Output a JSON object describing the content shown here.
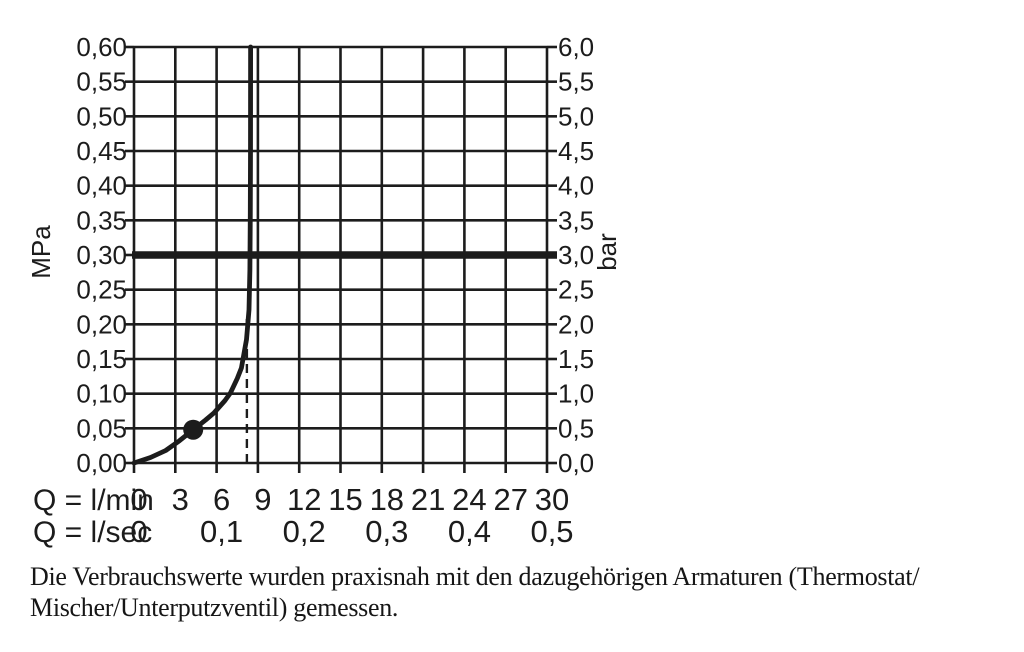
{
  "page": {
    "background": "#ffffff"
  },
  "chart_data": {
    "type": "line",
    "title": "",
    "grid": true,
    "ink_color": "#1c1c1c",
    "x_axis_primary": {
      "label": "Q = l/min",
      "ticks": [
        "0",
        "3",
        "6",
        "9",
        "12",
        "15",
        "18",
        "21",
        "24",
        "27",
        "30"
      ],
      "values": [
        0,
        3,
        6,
        9,
        12,
        15,
        18,
        21,
        24,
        27,
        30
      ],
      "range": [
        0,
        30
      ]
    },
    "x_axis_secondary": {
      "label": "Q = l/sec",
      "ticks": [
        "0",
        "0,1",
        "0,2",
        "0,3",
        "0,4",
        "0,5"
      ],
      "values_lmin": [
        0,
        6,
        12,
        18,
        24,
        30
      ]
    },
    "y_axis_left": {
      "label": "MPa",
      "ticks": [
        "0,60",
        "0,55",
        "0,50",
        "0,45",
        "0,40",
        "0,35",
        "0,30",
        "0,25",
        "0,20",
        "0,15",
        "0,10",
        "0,05",
        "0,00"
      ],
      "values": [
        0.6,
        0.55,
        0.5,
        0.45,
        0.4,
        0.35,
        0.3,
        0.25,
        0.2,
        0.15,
        0.1,
        0.05,
        0.0
      ],
      "range": [
        0,
        0.6
      ]
    },
    "y_axis_right": {
      "label": "bar",
      "ticks": [
        "6,0",
        "5,5",
        "5,0",
        "4,5",
        "4,0",
        "3,5",
        "3,0",
        "2,5",
        "2,0",
        "1,5",
        "1,0",
        "0,5",
        "0,0"
      ],
      "values_bar": [
        6.0,
        5.5,
        5.0,
        4.5,
        4.0,
        3.5,
        3.0,
        2.5,
        2.0,
        1.5,
        1.0,
        0.5,
        0.0
      ],
      "range": [
        0,
        6
      ]
    },
    "series": [
      {
        "name": "flow-pressure-curve",
        "points_lmin_mpa": [
          [
            0,
            0
          ],
          [
            1.2,
            0.008
          ],
          [
            2.3,
            0.018
          ],
          [
            3.3,
            0.032
          ],
          [
            4.3,
            0.048
          ],
          [
            5.2,
            0.062
          ],
          [
            5.8,
            0.072
          ],
          [
            6.6,
            0.09
          ],
          [
            7.0,
            0.101
          ],
          [
            7.5,
            0.122
          ],
          [
            7.8,
            0.137
          ],
          [
            8.17,
            0.178
          ],
          [
            8.35,
            0.221
          ],
          [
            8.42,
            0.279
          ],
          [
            8.45,
            0.36
          ],
          [
            8.46,
            0.45
          ],
          [
            8.47,
            0.6
          ]
        ]
      }
    ],
    "marker_point_lmin_mpa": [
      4.3,
      0.048
    ],
    "reference_line_mpa": 0.3,
    "reference_line_bar": 3.0,
    "dashed_line": {
      "x_lmin": 8.2,
      "top_mpa": 0.21
    }
  },
  "caption": {
    "lines": [
      "Die Verbrauchswerte wurden praxisnah mit den dazugehörigen Armaturen (Thermostat/",
      "Mischer/Unterputzventil) gemessen."
    ]
  }
}
